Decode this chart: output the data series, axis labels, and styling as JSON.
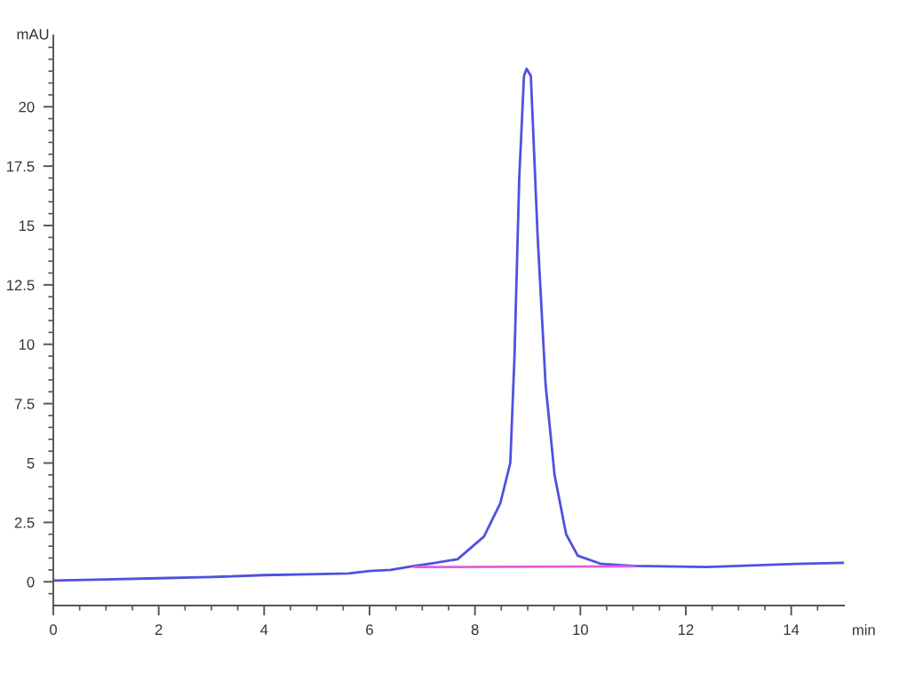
{
  "chart_data": {
    "type": "line",
    "ylabel": "mAU",
    "xlabel": "min",
    "series": [
      {
        "color": "#5050e0",
        "x": [
          0,
          1,
          2,
          3,
          4,
          5,
          5.6,
          6,
          6.4,
          6.8,
          7.2,
          7.67,
          8.17,
          8.48,
          8.67,
          8.75,
          8.84,
          8.93,
          8.98,
          9.06,
          9.19,
          9.34,
          9.51,
          9.73,
          9.95,
          10.4,
          11.01,
          12.4,
          14.08,
          15
        ],
        "values": [
          0.05,
          0.1,
          0.15,
          0.2,
          0.28,
          0.32,
          0.35,
          0.45,
          0.5,
          0.65,
          0.78,
          0.95,
          1.9,
          3.3,
          5,
          9.5,
          17,
          21.3,
          21.6,
          21.3,
          14.5,
          8.3,
          4.5,
          2,
          1.1,
          0.75,
          0.67,
          0.62,
          0.75,
          0.8
        ]
      },
      {
        "color": "#e060e0",
        "x": [
          6.86,
          11.0
        ],
        "values": [
          0.62,
          0.65
        ]
      }
    ],
    "xlim": [
      0,
      15
    ],
    "ylim": [
      -1,
      23
    ],
    "xticks": [
      0,
      {
        "value": 0.5,
        "label": null
      },
      {
        "value": 1,
        "label": null
      },
      {
        "value": 1.5,
        "label": null
      },
      2,
      {
        "value": 2.5,
        "label": null
      },
      {
        "value": 3,
        "label": null
      },
      {
        "value": 3.5,
        "label": null
      },
      4,
      {
        "value": 4.5,
        "label": null
      },
      {
        "value": 5,
        "label": null
      },
      {
        "value": 5.5,
        "label": null
      },
      6,
      {
        "value": 6.5,
        "label": null
      },
      {
        "value": 7,
        "label": null
      },
      {
        "value": 7.5,
        "label": null
      },
      8,
      {
        "value": 8.5,
        "label": null
      },
      {
        "value": 9,
        "label": null
      },
      {
        "value": 9.5,
        "label": null
      },
      10,
      {
        "value": 10.5,
        "label": null
      },
      {
        "value": 11,
        "label": null
      },
      {
        "value": 11.5,
        "label": null
      },
      12,
      {
        "value": 12.5,
        "label": null
      },
      {
        "value": 13,
        "label": null
      },
      {
        "value": 13.5,
        "label": null
      },
      14,
      {
        "value": 14.5,
        "label": null
      }
    ],
    "yticks": [
      {
        "value": -0.5,
        "label": null
      },
      0,
      {
        "value": 0.5,
        "label": null
      },
      {
        "value": 1,
        "label": null
      },
      {
        "value": 1.5,
        "label": null
      },
      {
        "value": 2,
        "label": null
      },
      2.5,
      {
        "value": 3,
        "label": null
      },
      {
        "value": 3.5,
        "label": null
      },
      {
        "value": 4,
        "label": null
      },
      {
        "value": 4.5,
        "label": null
      },
      5,
      {
        "value": 5.5,
        "label": null
      },
      {
        "value": 6,
        "label": null
      },
      {
        "value": 6.5,
        "label": null
      },
      {
        "value": 7,
        "label": null
      },
      7.5,
      {
        "value": 8,
        "label": null
      },
      {
        "value": 8.5,
        "label": null
      },
      {
        "value": 9,
        "label": null
      },
      {
        "value": 9.5,
        "label": null
      },
      10,
      {
        "value": 10.5,
        "label": null
      },
      {
        "value": 11,
        "label": null
      },
      {
        "value": 11.5,
        "label": null
      },
      {
        "value": 12,
        "label": null
      },
      12.5,
      {
        "value": 13,
        "label": null
      },
      {
        "value": 13.5,
        "label": null
      },
      {
        "value": 14,
        "label": null
      },
      {
        "value": 14.5,
        "label": null
      },
      15,
      {
        "value": 15.5,
        "label": null
      },
      {
        "value": 16,
        "label": null
      },
      {
        "value": 16.5,
        "label": null
      },
      {
        "value": 17,
        "label": null
      },
      17.5,
      {
        "value": 18,
        "label": null
      },
      {
        "value": 18.5,
        "label": null
      },
      {
        "value": 19,
        "label": null
      },
      {
        "value": 19.5,
        "label": null
      },
      20,
      {
        "value": 20.5,
        "label": null
      },
      {
        "value": 21,
        "label": null
      },
      {
        "value": 21.5,
        "label": null
      },
      {
        "value": 22,
        "label": null
      },
      {
        "value": 22.5,
        "label": null
      }
    ],
    "grid": false,
    "legend": false
  }
}
